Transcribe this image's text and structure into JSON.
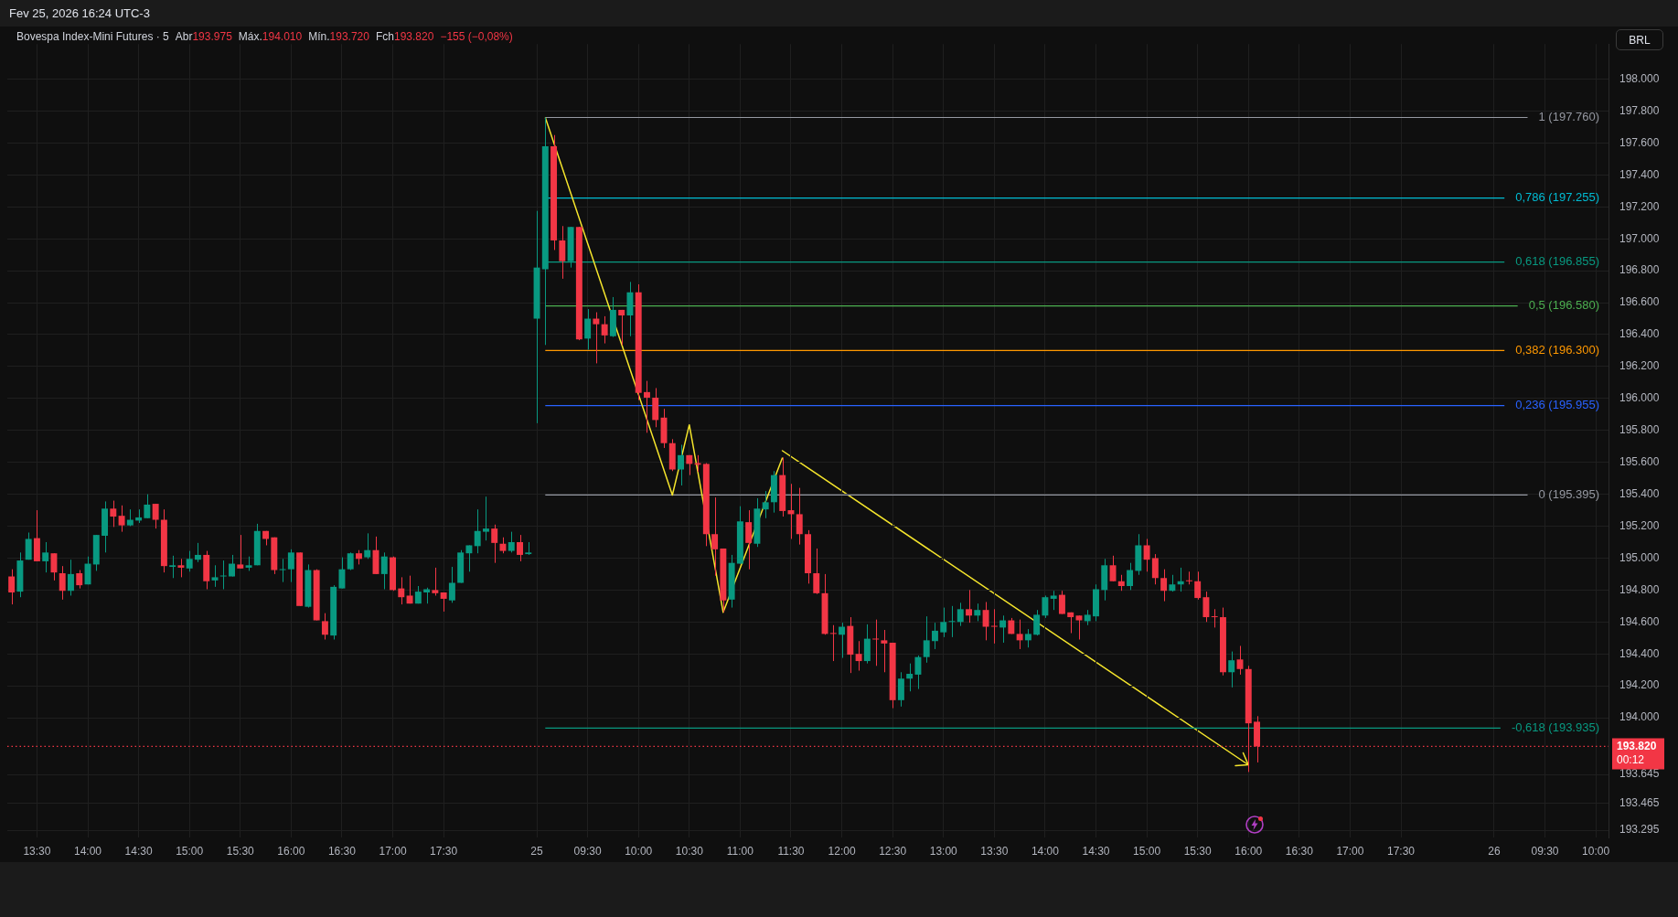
{
  "chart_data": {
    "type": "candlestick",
    "title": "Bovespa Index-Mini Futures · 5",
    "annotations": [
      "Fev 25, 2026 16:24 UTC-3",
      "Abr",
      "193.975",
      "Máx.",
      "194.010",
      "Mín.",
      "193.720",
      "Fch",
      "193.820",
      "−155 (−0,08%)",
      "BRL",
      "00:12"
    ],
    "categories": [
      null,
      null,
      null,
      "13:30",
      null,
      null,
      null,
      null,
      null,
      "14:00",
      null,
      null,
      null,
      null,
      null,
      "14:30",
      null,
      null,
      null,
      null,
      null,
      "15:00",
      null,
      null,
      null,
      null,
      null,
      "15:30",
      null,
      null,
      null,
      null,
      null,
      "16:00",
      null,
      null,
      null,
      null,
      null,
      "16:30",
      null,
      null,
      null,
      null,
      null,
      "17:00",
      null,
      null,
      null,
      null,
      null,
      "17:30",
      null,
      null,
      null,
      null,
      null,
      null,
      null,
      null,
      null,
      null,
      "25",
      null,
      null,
      null,
      null,
      null,
      "09:30",
      null,
      null,
      null,
      null,
      null,
      "10:00",
      null,
      null,
      null,
      null,
      null,
      "10:30",
      null,
      null,
      null,
      null,
      null,
      "11:00",
      null,
      null,
      null,
      null,
      null,
      "11:30",
      null,
      null,
      null,
      null,
      null,
      "12:00",
      null,
      null,
      null,
      null,
      null,
      "12:30",
      null,
      null,
      null,
      null,
      null,
      "13:00",
      null,
      null,
      null,
      null,
      null,
      "13:30",
      null,
      null,
      null,
      null,
      null,
      "14:00",
      null,
      null,
      null,
      null,
      null,
      "14:30",
      null,
      null,
      null,
      null,
      null,
      "15:00",
      null,
      null,
      null,
      null,
      null,
      "15:30",
      null,
      null,
      null,
      null,
      null,
      "16:00",
      null,
      null,
      null,
      null,
      null,
      "16:30",
      null,
      null,
      null,
      null,
      null,
      "17:00",
      null,
      null,
      null,
      null,
      null,
      "17:30",
      null,
      null,
      null,
      null,
      null,
      null,
      null,
      null,
      null,
      null,
      "26",
      null,
      null,
      null,
      null,
      null,
      "09:30",
      null,
      null,
      null,
      null,
      null,
      "10:00",
      null
    ],
    "ohlc": [
      [
        194885,
        194930,
        194710,
        194785
      ],
      [
        194790,
        195035,
        194755,
        194985
      ],
      [
        194990,
        195160,
        194990,
        195120
      ],
      [
        195125,
        195300,
        194980,
        194980
      ],
      [
        194980,
        195100,
        194910,
        195035
      ],
      [
        195030,
        195030,
        194860,
        194910
      ],
      [
        194905,
        194950,
        194740,
        194795
      ],
      [
        194795,
        194990,
        194765,
        194900
      ],
      [
        194905,
        194925,
        194810,
        194830
      ],
      [
        194835,
        195010,
        194835,
        194965
      ],
      [
        194960,
        195145,
        194920,
        195145
      ],
      [
        195140,
        195355,
        195035,
        195310
      ],
      [
        195310,
        195360,
        195195,
        195260
      ],
      [
        195265,
        195330,
        195165,
        195205
      ],
      [
        195205,
        195305,
        195200,
        195240
      ],
      [
        195235,
        195305,
        195220,
        195255
      ],
      [
        195250,
        195400,
        195250,
        195335
      ],
      [
        195340,
        195340,
        195185,
        195240
      ],
      [
        195240,
        195305,
        194910,
        194950
      ],
      [
        194945,
        195015,
        194875,
        194955
      ],
      [
        194955,
        194995,
        194880,
        194940
      ],
      [
        194935,
        195045,
        194915,
        194995
      ],
      [
        194990,
        195095,
        194975,
        195020
      ],
      [
        195020,
        195045,
        194805,
        194855
      ],
      [
        194860,
        194955,
        194820,
        194880
      ],
      [
        194885,
        194985,
        194805,
        194890
      ],
      [
        194885,
        195020,
        194885,
        194965
      ],
      [
        194960,
        195145,
        194935,
        194935
      ],
      [
        194940,
        195010,
        194920,
        194955
      ],
      [
        194955,
        195215,
        194955,
        195170
      ],
      [
        195170,
        195170,
        195080,
        195120
      ],
      [
        195130,
        195130,
        194900,
        194925
      ],
      [
        194925,
        194995,
        194850,
        194930
      ],
      [
        194930,
        195055,
        194850,
        195035
      ],
      [
        195035,
        195035,
        194700,
        194700
      ],
      [
        194695,
        194960,
        194690,
        194925
      ],
      [
        194925,
        194930,
        194610,
        194610
      ],
      [
        194605,
        194655,
        194490,
        194520
      ],
      [
        194515,
        194830,
        194490,
        194820
      ],
      [
        194810,
        195005,
        194810,
        194930
      ],
      [
        194930,
        195035,
        194925,
        195030
      ],
      [
        195030,
        195050,
        194960,
        194995
      ],
      [
        195005,
        195155,
        194995,
        195050
      ],
      [
        195050,
        195135,
        194900,
        194900
      ],
      [
        194900,
        195035,
        194805,
        195010
      ],
      [
        195005,
        195010,
        194795,
        194800
      ],
      [
        194810,
        194880,
        194710,
        194755
      ],
      [
        194765,
        194890,
        194715,
        194715
      ],
      [
        194715,
        194825,
        194715,
        194790
      ],
      [
        194785,
        194815,
        194715,
        194805
      ],
      [
        194800,
        194940,
        194765,
        194780
      ],
      [
        194785,
        194785,
        194665,
        194745
      ],
      [
        194735,
        194945,
        194720,
        194845
      ],
      [
        194845,
        195050,
        194845,
        195035
      ],
      [
        195030,
        195080,
        194915,
        195080
      ],
      [
        195075,
        195305,
        195030,
        195170
      ],
      [
        195165,
        195385,
        195110,
        195185
      ],
      [
        195185,
        195210,
        194970,
        195095
      ],
      [
        195090,
        195130,
        195030,
        195045
      ],
      [
        195045,
        195165,
        195035,
        195100
      ],
      [
        195100,
        195145,
        194980,
        195020
      ],
      [
        195025,
        195100,
        195020,
        195035
      ],
      [
        196500,
        197175,
        195845,
        196820
      ],
      [
        196810,
        197760,
        196335,
        197580
      ],
      [
        197580,
        197650,
        196930,
        196990
      ],
      [
        196990,
        197080,
        196750,
        196860
      ],
      [
        196860,
        197075,
        196820,
        197075
      ],
      [
        197075,
        197075,
        196365,
        196370
      ],
      [
        196375,
        196560,
        196305,
        196500
      ],
      [
        196500,
        196540,
        196220,
        196465
      ],
      [
        196465,
        196515,
        196345,
        196395
      ],
      [
        196390,
        196635,
        196385,
        196555
      ],
      [
        196555,
        196555,
        196335,
        196520
      ],
      [
        196520,
        196730,
        196390,
        196665
      ],
      [
        196665,
        196715,
        195990,
        196035
      ],
      [
        196040,
        196110,
        195785,
        196005
      ],
      [
        196005,
        196065,
        195820,
        195865
      ],
      [
        195880,
        195935,
        195690,
        195720
      ],
      [
        195720,
        195745,
        195545,
        195555
      ],
      [
        195555,
        195710,
        195455,
        195645
      ],
      [
        195645,
        195645,
        195520,
        195590
      ],
      [
        195595,
        195645,
        195540,
        195585
      ],
      [
        195590,
        195595,
        195075,
        195150
      ],
      [
        195150,
        195380,
        194890,
        195055
      ],
      [
        195060,
        195060,
        194660,
        194735
      ],
      [
        194740,
        195020,
        194690,
        194970
      ],
      [
        194965,
        195325,
        194965,
        195230
      ],
      [
        195225,
        195300,
        194930,
        195095
      ],
      [
        195090,
        195375,
        195070,
        195310
      ],
      [
        195305,
        195420,
        195250,
        195350
      ],
      [
        195350,
        195545,
        195285,
        195520
      ],
      [
        195520,
        195630,
        195260,
        195295
      ],
      [
        195300,
        195465,
        195120,
        195275
      ],
      [
        195275,
        195440,
        195085,
        195150
      ],
      [
        195150,
        195175,
        194840,
        194905
      ],
      [
        194905,
        195060,
        194775,
        194780
      ],
      [
        194780,
        194900,
        194520,
        194525
      ],
      [
        194530,
        194580,
        194355,
        194525
      ],
      [
        194520,
        194595,
        194375,
        194570
      ],
      [
        194575,
        194630,
        194280,
        194395
      ],
      [
        194400,
        194480,
        194295,
        194355
      ],
      [
        194355,
        194585,
        194340,
        194495
      ],
      [
        194495,
        194615,
        194325,
        194490
      ],
      [
        194485,
        194550,
        194285,
        194465
      ],
      [
        194470,
        194470,
        194060,
        194110
      ],
      [
        194110,
        194285,
        194070,
        194245
      ],
      [
        194245,
        194340,
        194165,
        194275
      ],
      [
        194270,
        194390,
        194180,
        194380
      ],
      [
        194380,
        194635,
        194345,
        194485
      ],
      [
        194480,
        194595,
        194430,
        194545
      ],
      [
        194535,
        194690,
        194505,
        194600
      ],
      [
        194600,
        194700,
        194505,
        194605
      ],
      [
        194600,
        194720,
        194575,
        194680
      ],
      [
        194680,
        194800,
        194595,
        194640
      ],
      [
        194640,
        194715,
        194605,
        194675
      ],
      [
        194675,
        194725,
        194485,
        194570
      ],
      [
        194575,
        194680,
        194465,
        194570
      ],
      [
        194565,
        194640,
        194470,
        194610
      ],
      [
        194610,
        194625,
        194525,
        194525
      ],
      [
        194525,
        194615,
        194430,
        194485
      ],
      [
        194485,
        194555,
        194440,
        194525
      ],
      [
        194520,
        194675,
        194515,
        194645
      ],
      [
        194640,
        194765,
        194625,
        194755
      ],
      [
        194745,
        194795,
        194675,
        194765
      ],
      [
        194770,
        194795,
        194650,
        194650
      ],
      [
        194660,
        194660,
        194530,
        194630
      ],
      [
        194640,
        194640,
        194490,
        194610
      ],
      [
        194605,
        194675,
        194580,
        194645
      ],
      [
        194635,
        194835,
        194605,
        194805
      ],
      [
        194800,
        194995,
        194735,
        194955
      ],
      [
        194955,
        195015,
        194855,
        194855
      ],
      [
        194855,
        194895,
        194795,
        194825
      ],
      [
        194825,
        194970,
        194800,
        194925
      ],
      [
        194920,
        195150,
        194895,
        195080
      ],
      [
        195080,
        195120,
        194915,
        194990
      ],
      [
        195000,
        195025,
        194835,
        194875
      ],
      [
        194875,
        194930,
        194730,
        194795
      ],
      [
        194795,
        194895,
        194790,
        194835
      ],
      [
        194835,
        194940,
        194790,
        194855
      ],
      [
        194860,
        194915,
        194835,
        194855
      ],
      [
        194855,
        194915,
        194740,
        194750
      ],
      [
        194755,
        194790,
        194600,
        194630
      ],
      [
        194635,
        194680,
        194565,
        194630
      ],
      [
        194630,
        194690,
        194265,
        194285
      ],
      [
        194285,
        194415,
        194190,
        194360
      ],
      [
        194365,
        194450,
        194270,
        194305
      ],
      [
        194305,
        194325,
        193660,
        193965
      ],
      [
        193975,
        194010,
        193720,
        193820
      ],
      null,
      null,
      null,
      null,
      null,
      null,
      null,
      null,
      null,
      null,
      null,
      null,
      null,
      null,
      null,
      null,
      null,
      null,
      null,
      null,
      null,
      null,
      null,
      null,
      null,
      null,
      null,
      null,
      null,
      null,
      null,
      null,
      null,
      null,
      null,
      null,
      null,
      null,
      null,
      null,
      null
    ],
    "series": [
      {
        "type": "line",
        "color": "#f5e52c",
        "values": [
          null,
          null,
          null,
          null,
          null,
          null,
          null,
          null,
          null,
          null,
          null,
          null,
          null,
          null,
          null,
          null,
          null,
          null,
          null,
          null,
          null,
          null,
          null,
          null,
          null,
          null,
          null,
          null,
          null,
          null,
          null,
          null,
          null,
          null,
          null,
          null,
          null,
          null,
          null,
          null,
          null,
          null,
          null,
          null,
          null,
          null,
          null,
          null,
          null,
          null,
          null,
          null,
          null,
          null,
          null,
          null,
          null,
          null,
          null,
          null,
          null,
          null,
          null,
          197760,
          null,
          null,
          null,
          null,
          null,
          null,
          null,
          null,
          null,
          null,
          null,
          null,
          null,
          null,
          195395,
          null,
          195835,
          null,
          null,
          null,
          194660,
          null,
          null,
          null,
          null,
          null,
          null,
          195630,
          null,
          null,
          null,
          null,
          null,
          null,
          null,
          null,
          null,
          null,
          null,
          null,
          null,
          null,
          null,
          null,
          null,
          null,
          null,
          null,
          null,
          null,
          null,
          null,
          null,
          null,
          null,
          null,
          null,
          null,
          null,
          null,
          null,
          null,
          null,
          null,
          null,
          null,
          null,
          null,
          null,
          null,
          null,
          null,
          null,
          null,
          null,
          null,
          null,
          null,
          null,
          null,
          null,
          null,
          null,
          null,
          null,
          null,
          null,
          null,
          null,
          null,
          null,
          null,
          null,
          null,
          null,
          null,
          null,
          null,
          null,
          null,
          null,
          null,
          null,
          null,
          null,
          null,
          null,
          null,
          null,
          null,
          null,
          null,
          null,
          null,
          null,
          null,
          null,
          null,
          null,
          null,
          null,
          null,
          null,
          null,
          null
        ]
      }
    ],
    "ref_lines": [
      {
        "axis": "y",
        "value": 197760,
        "label": "1 (197.760)",
        "color": "#9598a1"
      },
      {
        "axis": "y",
        "value": 197255,
        "label": "0,786 (197.255)",
        "color": "#00bcd4"
      },
      {
        "axis": "y",
        "value": 196855,
        "label": "0,618 (196.855)",
        "color": "#089981"
      },
      {
        "axis": "y",
        "value": 196580,
        "label": "0,5 (196.580)",
        "color": "#4caf50"
      },
      {
        "axis": "y",
        "value": 196300,
        "label": "0,382 (196.300)",
        "color": "#ff9800"
      },
      {
        "axis": "y",
        "value": 195955,
        "label": "0,236 (195.955)",
        "color": "#2962ff"
      },
      {
        "axis": "y",
        "value": 195395,
        "label": "0 (195.395)",
        "color": "#9598a1"
      },
      {
        "axis": "y",
        "value": 193935,
        "label": "-0,618 (193.935)",
        "color": "#089981"
      },
      {
        "axis": "y",
        "value": 193820,
        "label": "193.820",
        "color": "#f23645",
        "line_style": "dotted"
      }
    ],
    "ylim": [
      193250,
      198220
    ],
    "yticks": [
      {
        "value": 198000,
        "label": "198.000"
      },
      {
        "value": 197800,
        "label": "197.800"
      },
      {
        "value": 197600,
        "label": "197.600"
      },
      {
        "value": 197400,
        "label": "197.400"
      },
      {
        "value": 197200,
        "label": "197.200"
      },
      {
        "value": 197000,
        "label": "197.000"
      },
      {
        "value": 196800,
        "label": "196.800"
      },
      {
        "value": 196600,
        "label": "196.600"
      },
      {
        "value": 196400,
        "label": "196.400"
      },
      {
        "value": 196200,
        "label": "196.200"
      },
      {
        "value": 196000,
        "label": "196.000"
      },
      {
        "value": 195800,
        "label": "195.800"
      },
      {
        "value": 195600,
        "label": "195.600"
      },
      {
        "value": 195400,
        "label": "195.400"
      },
      {
        "value": 195200,
        "label": "195.200"
      },
      {
        "value": 195000,
        "label": "195.000"
      },
      {
        "value": 194800,
        "label": "194.800"
      },
      {
        "value": 194600,
        "label": "194.600"
      },
      {
        "value": 194400,
        "label": "194.400"
      },
      {
        "value": 194200,
        "label": "194.200"
      },
      {
        "value": 194000,
        "label": "194.000"
      },
      {
        "value": 193645,
        "label": "193.645"
      },
      {
        "value": 193465,
        "label": "193.465"
      },
      {
        "value": 193295,
        "label": "193.295"
      }
    ],
    "grid": true,
    "legend": false
  }
}
